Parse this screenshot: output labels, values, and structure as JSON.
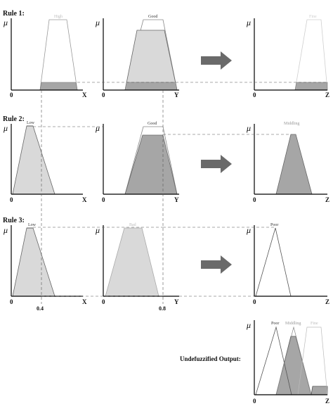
{
  "rules": [
    {
      "label": "Rule 1:"
    },
    {
      "label": "Rule 2:"
    },
    {
      "label": "Rule 3:"
    }
  ],
  "mu_symbol": "μ",
  "origin_label": "0",
  "axes": {
    "x": "X",
    "y": "Y",
    "z": "Z"
  },
  "sets": {
    "r1_x": "High",
    "r1_y": "Good",
    "r1_z": "Fine",
    "r2_x": "Low",
    "r2_y": "Good",
    "r2_z": "Middling",
    "r3_x": "Low",
    "r3_y": "Bad",
    "r3_z": "Poor",
    "out_poor": "Poor",
    "out_middling": "Middling",
    "out_fine": "Fine"
  },
  "inputs": {
    "x_value": "0.4",
    "y_value": "0.8"
  },
  "output_label": "Undefuzzified Output:",
  "colors": {
    "light_fill": "#d9d9d9",
    "dark_fill": "#a6a6a6",
    "arrow": "#6a6a6a",
    "faint_text": "#bdbdbd",
    "dashed": "#555555"
  }
}
